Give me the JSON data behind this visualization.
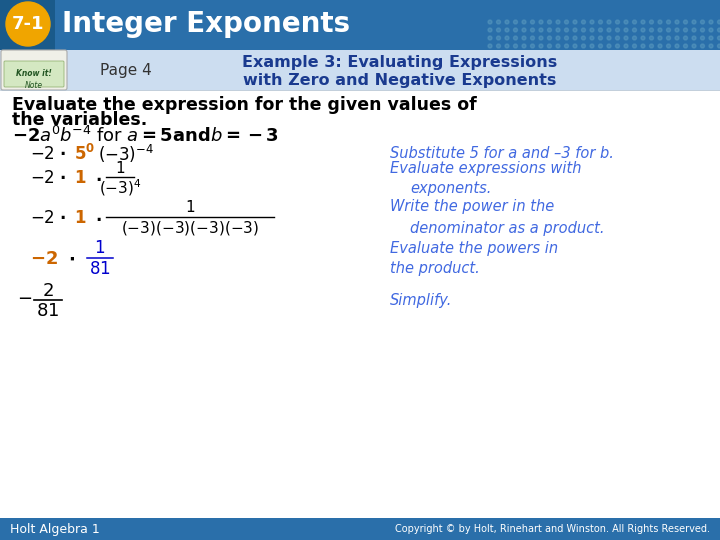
{
  "title_text": "Integer Exponents",
  "title_num": "7-1",
  "title_num_bg": "#f0a500",
  "header_bg": "#2a6faa",
  "header_bg2": "#1a5a8a",
  "subheader_bg": "#ccddf0",
  "page_label": "Page 4",
  "example_title_line1": "Example 3: Evaluating Expressions",
  "example_title_line2": "with Zero and Negative Exponents",
  "example_title_color": "#1a3a8f",
  "body_bg": "#ffffff",
  "black": "#000000",
  "blue_color": "#0000cd",
  "orange_color": "#cc6600",
  "italic_color": "#4169e1",
  "footer_bg": "#2a6faa",
  "footer_fg": "#ffffff",
  "footer_left": "Holt Algebra 1",
  "footer_right": "Copyright © by Holt, Rinehart and Winston. All Rights Reserved.",
  "dot_color": "#5a9abf",
  "grid_dot_alpha": 0.5
}
